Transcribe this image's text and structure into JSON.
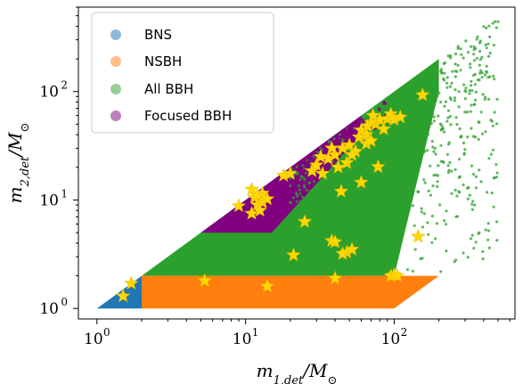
{
  "chart_data": {
    "type": "scatter",
    "xscale": "log",
    "yscale": "log",
    "xlim": [
      0.75,
      650
    ],
    "ylim": [
      0.8,
      600
    ],
    "xticks": [
      {
        "value": 1,
        "base": "10",
        "exp": "0"
      },
      {
        "value": 10,
        "base": "10",
        "exp": "1"
      },
      {
        "value": 100,
        "base": "10",
        "exp": "2"
      }
    ],
    "yticks": [
      {
        "value": 1,
        "base": "10",
        "exp": "0"
      },
      {
        "value": 10,
        "base": "10",
        "exp": "1"
      },
      {
        "value": 100,
        "base": "10",
        "exp": "2"
      }
    ],
    "xlabel": "m_{1,det}/M_⊙",
    "ylabel": "m_{2,det}/M_⊙",
    "legend": {
      "placement": "top-left"
    },
    "series": [
      {
        "name": "BNS",
        "color": "#1f77b4",
        "legend_color": "#8fb7da",
        "region": {
          "m1_min": 1.0,
          "m1_max": 2.0,
          "m2_min": 1.0,
          "m2_max": 2.0,
          "m2_le_m1": true
        }
      },
      {
        "name": "NSBH",
        "color": "#ff7f0e",
        "legend_color": "#ffbf86",
        "region": {
          "m1_min": 2.0,
          "m1_max": 200,
          "m2_min": 1.0,
          "m2_max": 2.0
        }
      },
      {
        "name": "All BBH",
        "color": "#2ca02c",
        "legend_color": "#95cf95",
        "region": {
          "m1_min": 2.0,
          "m1_max": 100,
          "m2_min": 2.0,
          "m2_le_m1": true
        },
        "scatter_extension": {
          "m1_max": 500,
          "m2_max": 450
        }
      },
      {
        "name": "Focused BBH",
        "color": "#800080",
        "legend_color": "#bf7fbf",
        "region": {
          "m1_min": 5.0,
          "m1_max": 60,
          "m2_min": 5.0,
          "m2_min_ratio": 0.35
        }
      }
    ],
    "events": {
      "name": "events",
      "marker": "star",
      "color": "#ffd700",
      "points": [
        [
          1.5,
          1.3
        ],
        [
          1.7,
          1.7
        ],
        [
          5.3,
          1.8
        ],
        [
          14,
          1.6
        ],
        [
          40,
          1.9
        ],
        [
          95,
          2.0
        ],
        [
          100,
          2.05
        ],
        [
          105,
          2.0
        ],
        [
          21,
          3.1
        ],
        [
          38,
          4.2
        ],
        [
          40,
          4.1
        ],
        [
          48,
          3.3
        ],
        [
          52,
          3.5
        ],
        [
          45,
          3.2
        ],
        [
          145,
          4.6
        ],
        [
          25,
          6.3
        ],
        [
          9,
          8.8
        ],
        [
          11,
          7.5
        ],
        [
          12,
          9.0
        ],
        [
          13,
          9.5
        ],
        [
          11.5,
          10.5
        ],
        [
          12.5,
          8.0
        ],
        [
          13,
          11.5
        ],
        [
          11,
          12.5
        ],
        [
          14,
          10.2
        ],
        [
          12,
          11.0
        ],
        [
          18,
          16.8
        ],
        [
          20,
          17.5
        ],
        [
          28,
          18.5
        ],
        [
          33,
          17.5
        ],
        [
          44,
          12.0
        ],
        [
          60,
          14.5
        ],
        [
          78,
          20.2
        ],
        [
          36,
          24
        ],
        [
          40,
          26
        ],
        [
          45,
          30
        ],
        [
          50,
          32
        ],
        [
          55,
          28
        ],
        [
          65,
          33
        ],
        [
          58,
          38
        ],
        [
          65,
          40
        ],
        [
          70,
          35
        ],
        [
          60,
          44
        ],
        [
          75,
          50
        ],
        [
          80,
          55
        ],
        [
          70,
          52
        ],
        [
          90,
          56
        ],
        [
          85,
          45
        ],
        [
          95,
          62
        ],
        [
          100,
          55
        ],
        [
          48,
          22
        ],
        [
          52,
          26
        ],
        [
          38,
          30
        ],
        [
          32,
          25
        ],
        [
          42,
          20
        ],
        [
          30,
          21
        ],
        [
          155,
          93
        ],
        [
          72,
          60
        ],
        [
          66,
          48
        ],
        [
          110,
          58
        ]
      ]
    }
  }
}
